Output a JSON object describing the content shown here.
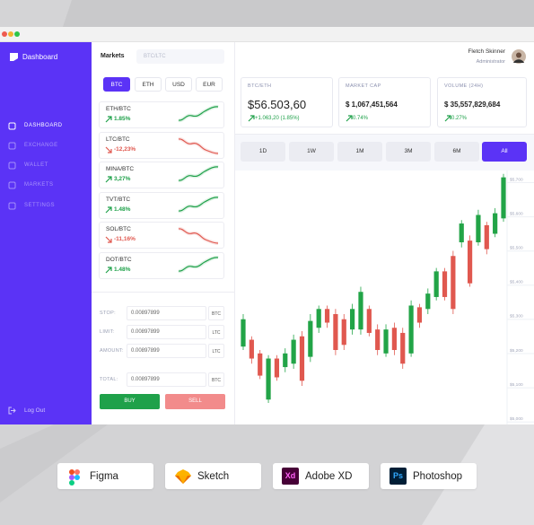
{
  "sidebar": {
    "logo": "Dashboard",
    "nav": [
      "DASHBOARD",
      "EXCHANGE",
      "WALLET",
      "MARKETS",
      "SETTINGS"
    ],
    "active": 0,
    "logout": "Log Out"
  },
  "markets": {
    "title": "Markets",
    "search_placeholder": "BTC/LTC",
    "tabs": [
      "BTC",
      "ETH",
      "USD",
      "EUR"
    ],
    "active_tab": 0,
    "pairs": [
      {
        "name": "ETH/BTC",
        "change": "1.85%",
        "trend": "up"
      },
      {
        "name": "LTC/BTC",
        "change": "-12,23%",
        "trend": "down"
      },
      {
        "name": "MINA/BTC",
        "change": "3,27%",
        "trend": "up"
      },
      {
        "name": "TVT/BTC",
        "change": "1.48%",
        "trend": "up"
      },
      {
        "name": "SOL/BTC",
        "change": "-11,16%",
        "trend": "down"
      },
      {
        "name": "DOT/BTC",
        "change": "1.48%",
        "trend": "up"
      }
    ]
  },
  "order_form": {
    "fields": [
      {
        "label": "STOP:",
        "value": "0.00897899",
        "unit": "BTC"
      },
      {
        "label": "LIMIT:",
        "value": "0.00897899",
        "unit": "LTC"
      },
      {
        "label": "AMOUNT:",
        "value": "0.00897899",
        "unit": "LTC"
      },
      {
        "label": "TOTAL:",
        "value": "0.00897899",
        "unit": "BTC"
      }
    ],
    "buy": "BUY",
    "sell": "SELL"
  },
  "user": {
    "name": "Fletch Skinner",
    "role": "Administrator"
  },
  "stats": [
    {
      "label": "BTC/ETH",
      "value": "$56.503,60",
      "change": "+1.063,20 (1.85%)"
    },
    {
      "label": "MARKET CAP",
      "value": "$ 1,067,451,564",
      "change": "0.74%"
    },
    {
      "label": "VOLUME (24H)",
      "value": "$ 35,557,829,684",
      "change": "0.27%"
    }
  ],
  "periods": [
    "1D",
    "1W",
    "1M",
    "3M",
    "6M",
    "All"
  ],
  "active_period": 5,
  "chart_data": {
    "type": "candlestick",
    "open": [
      5210,
      5230,
      5190,
      5055,
      5175,
      5150,
      5160,
      5240,
      5180,
      5265,
      5320,
      5305,
      5290,
      5260,
      5260,
      5320,
      5260,
      5190,
      5265,
      5250,
      5190,
      5325,
      5320,
      5355,
      5430,
      5475,
      5515,
      5520,
      5515,
      5565,
      5540,
      5585
    ],
    "high": [
      5305,
      5240,
      5200,
      5185,
      5185,
      5205,
      5245,
      5255,
      5305,
      5330,
      5330,
      5320,
      5305,
      5335,
      5385,
      5330,
      5275,
      5275,
      5280,
      5265,
      5345,
      5335,
      5380,
      5440,
      5440,
      5490,
      5580,
      5535,
      5610,
      5575,
      5615,
      5715
    ],
    "low": [
      5200,
      5160,
      5115,
      5045,
      5110,
      5135,
      5145,
      5095,
      5165,
      5250,
      5265,
      5185,
      5200,
      5245,
      5245,
      5240,
      5185,
      5180,
      5185,
      5145,
      5180,
      5265,
      5305,
      5345,
      5345,
      5305,
      5500,
      5385,
      5505,
      5480,
      5530,
      5575
    ],
    "close": [
      5290,
      5175,
      5125,
      5175,
      5120,
      5190,
      5230,
      5110,
      5285,
      5320,
      5280,
      5200,
      5215,
      5320,
      5370,
      5250,
      5200,
      5260,
      5200,
      5160,
      5330,
      5280,
      5365,
      5430,
      5355,
      5320,
      5570,
      5395,
      5595,
      5495,
      5600,
      5705
    ],
    "ylim": [
      4990,
      5725
    ],
    "yticks": [
      {
        "value": 5000,
        "label": "$5,000"
      },
      {
        "value": 5100,
        "label": "$5,100"
      },
      {
        "value": 5200,
        "label": "$5,200"
      },
      {
        "value": 5300,
        "label": "$5,300"
      },
      {
        "value": 5400,
        "label": "$5,400"
      },
      {
        "value": 5500,
        "label": "$5,500"
      },
      {
        "value": 5600,
        "label": "$5,600"
      },
      {
        "value": 5700,
        "label": "$5,700"
      }
    ],
    "grid": true,
    "colors": {
      "up": "#22a447",
      "down": "#e0584f"
    }
  },
  "tools": [
    {
      "name": "Figma"
    },
    {
      "name": "Sketch"
    },
    {
      "name": "Adobe XD",
      "badge": "Xd"
    },
    {
      "name": "Photoshop",
      "badge": "Ps"
    }
  ]
}
